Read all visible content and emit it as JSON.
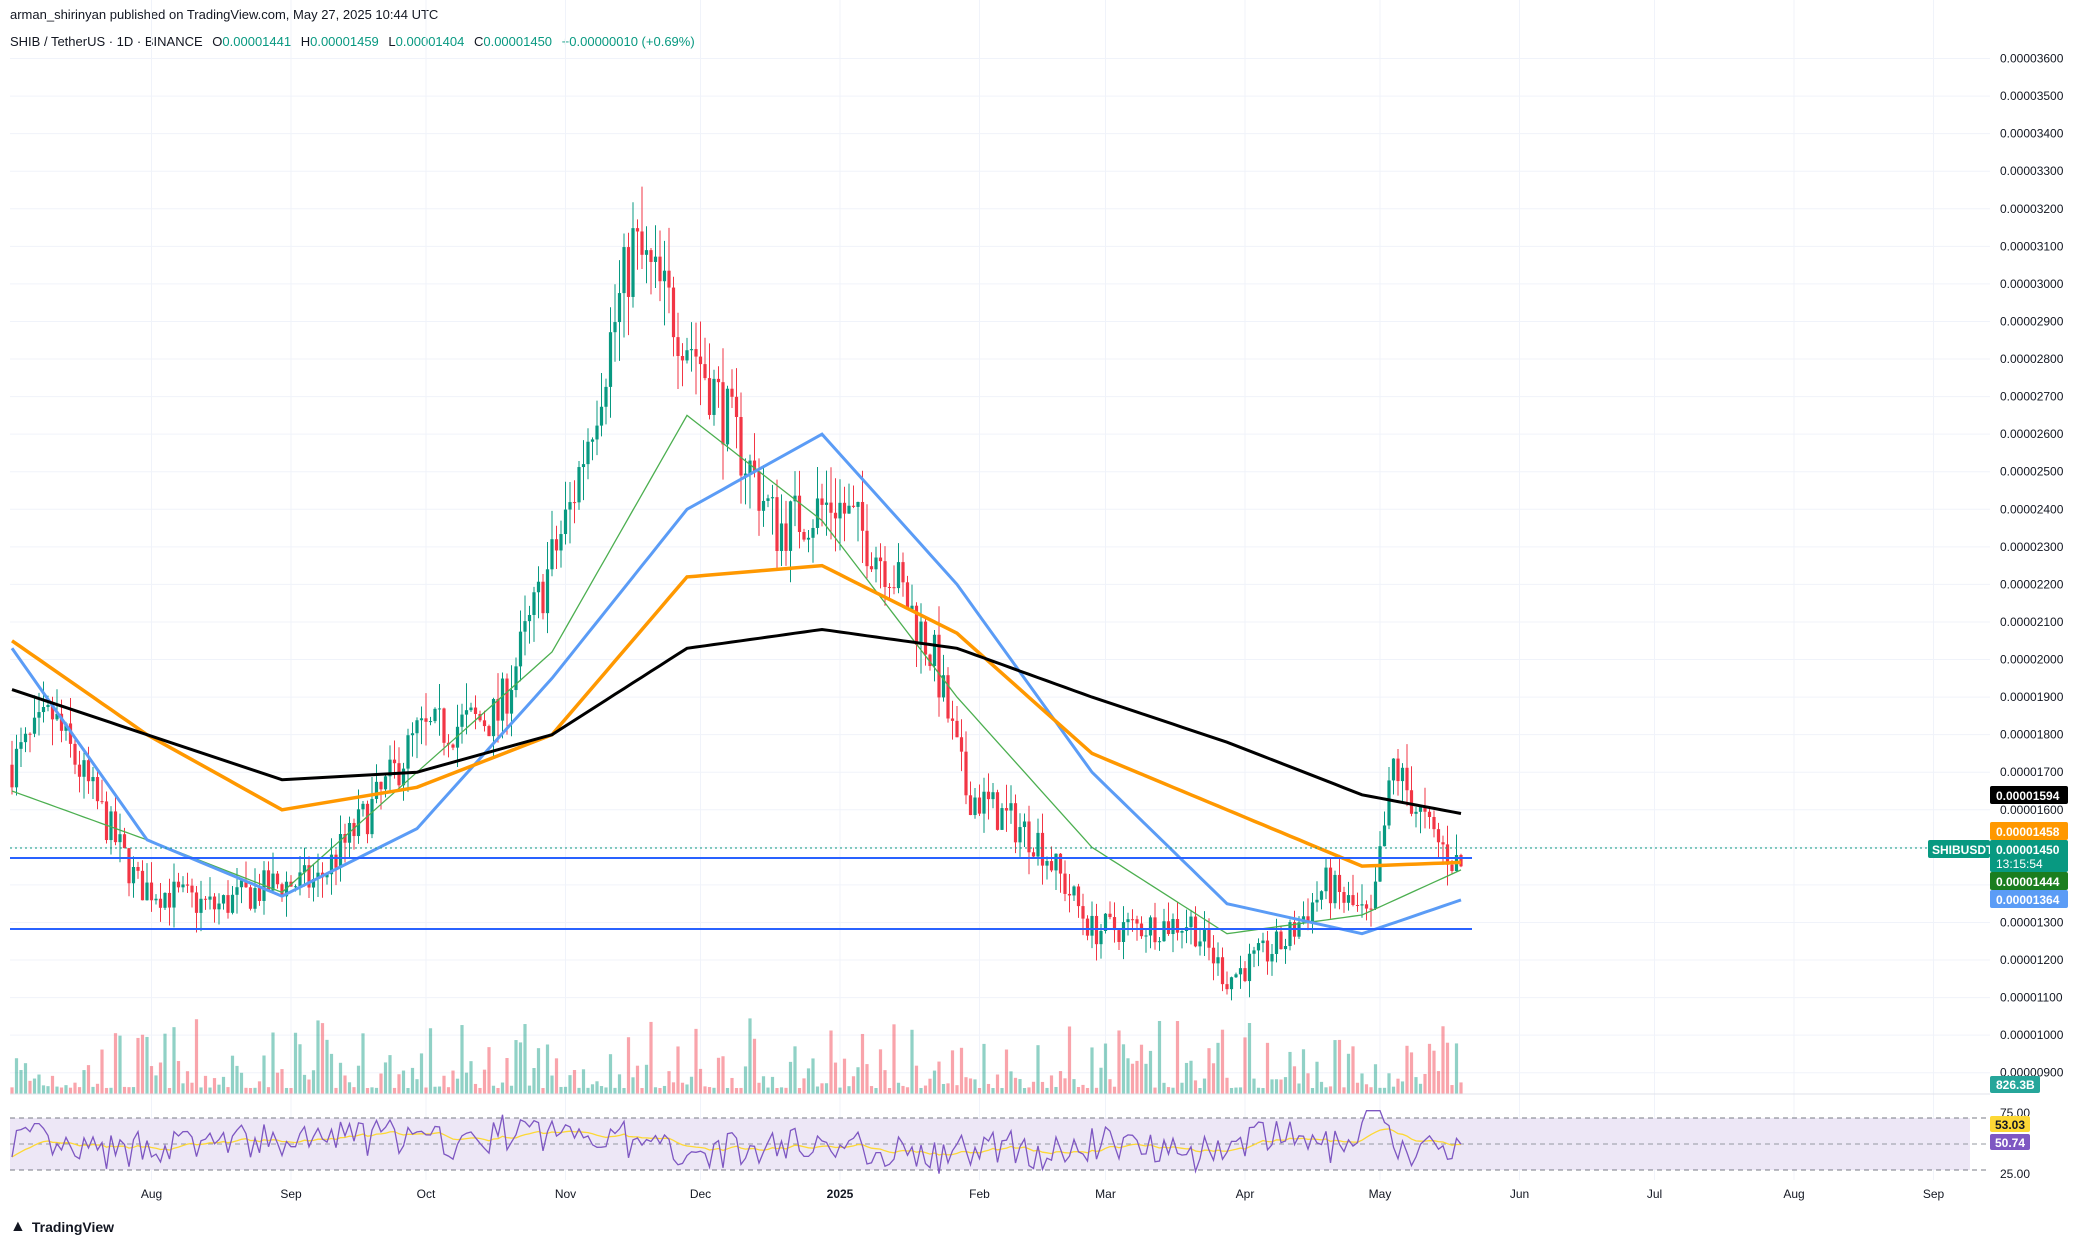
{
  "header": {
    "publisher": "arman_shirinyan published on TradingView.com, May 27, 2025 10:44 UTC",
    "symbol": "SHIB / TetherUS · 1D · BINANCE",
    "open_label": "O",
    "open": "0.00001441",
    "high_label": "H",
    "high": "0.00001459",
    "low_label": "L",
    "low": "0.00001404",
    "close_label": "C",
    "close": "0.00001450",
    "change": "+0.00000010 (+0.69%)"
  },
  "price_tags": {
    "ma200": "0.00001594",
    "ma100": "0.00001458",
    "symbol_tag": "SHIBUSDT",
    "last": "0.00001450",
    "countdown": "13:15:54",
    "ma20": "0.00001444",
    "ma50": "0.00001364",
    "volume": "826.3B",
    "rsi_ma": "53.03",
    "rsi": "50.74"
  },
  "rsi_levels": [
    "75.00",
    "25.00"
  ],
  "brand": {
    "name": "TradingView",
    "logo_icon": "tradingview-logo-icon"
  },
  "colors": {
    "up": "#089981",
    "down": "#f23645",
    "ma20": "#4caf50",
    "ma50": "#5b9cf6",
    "ma100": "#ff9800",
    "ma200": "#000000",
    "support": "#2962ff",
    "rsi_line": "#7e57c2",
    "rsi_ma": "#fdd835",
    "rsi_band": "#ede7f6"
  },
  "chart_data": {
    "type": "candlestick",
    "title": "SHIB / TetherUS · 1D · BINANCE",
    "ylim": [
      8.7e-06,
      3.66e-05
    ],
    "y_ticks": [
      "0.00000900",
      "0.00001000",
      "0.00001100",
      "0.00001200",
      "0.00001300",
      "0.00001400",
      "0.00001500",
      "0.00001600",
      "0.00001700",
      "0.00001800",
      "0.00001900",
      "0.00002000",
      "0.00002100",
      "0.00002200",
      "0.00002300",
      "0.00002400",
      "0.00002500",
      "0.00002600",
      "0.00002700",
      "0.00002800",
      "0.00002900",
      "0.00003000",
      "0.00003100",
      "0.00003200",
      "0.00003300",
      "0.00003400",
      "0.00003500",
      "0.00003600"
    ],
    "x_ticks": [
      "Aug",
      "Sep",
      "Oct",
      "Nov",
      "Dec",
      "2025",
      "Feb",
      "Mar",
      "Apr",
      "May",
      "Jun",
      "Jul",
      "Aug",
      "Sep"
    ],
    "support_levels": [
      1.446e-05,
      1.252e-05
    ],
    "price_path": [
      [
        0,
        1.72e-05
      ],
      [
        9,
        1.85e-05
      ],
      [
        28,
        1.4e-05
      ],
      [
        45,
        1.34e-05
      ],
      [
        58,
        1.4e-05
      ],
      [
        68,
        1.41e-05
      ],
      [
        82,
        1.64e-05
      ],
      [
        90,
        1.8e-05
      ],
      [
        108,
        1.85e-05
      ],
      [
        124,
        2.4e-05
      ],
      [
        138,
        3.1e-05
      ],
      [
        152,
        2.82e-05
      ],
      [
        170,
        2.35e-05
      ],
      [
        183,
        2.42e-05
      ],
      [
        195,
        2.25e-05
      ],
      [
        205,
        2e-05
      ],
      [
        212,
        1.65e-05
      ],
      [
        228,
        1.52e-05
      ],
      [
        240,
        1.28e-05
      ],
      [
        262,
        1.3e-05
      ],
      [
        270,
        1.15e-05
      ],
      [
        283,
        1.25e-05
      ],
      [
        292,
        1.4e-05
      ],
      [
        302,
        1.3e-05
      ],
      [
        307,
        1.72e-05
      ],
      [
        315,
        1.54e-05
      ],
      [
        320,
        1.47e-05
      ],
      [
        322,
        1.45e-05
      ]
    ],
    "series": [
      {
        "name": "MA20",
        "x": [
          0,
          30,
          60,
          90,
          120,
          150,
          180,
          210,
          240,
          270,
          300,
          322
        ],
        "values": [
          1.65e-05,
          1.52e-05,
          1.38e-05,
          1.7e-05,
          2.02e-05,
          2.65e-05,
          2.37e-05,
          1.9e-05,
          1.5e-05,
          1.27e-05,
          1.32e-05,
          1.44e-05
        ]
      },
      {
        "name": "MA50",
        "x": [
          0,
          30,
          60,
          90,
          120,
          150,
          180,
          210,
          240,
          270,
          300,
          322
        ],
        "values": [
          2.03e-05,
          1.52e-05,
          1.37e-05,
          1.55e-05,
          1.95e-05,
          2.4e-05,
          2.6e-05,
          2.2e-05,
          1.7e-05,
          1.35e-05,
          1.27e-05,
          1.36e-05
        ]
      },
      {
        "name": "MA100",
        "x": [
          0,
          30,
          60,
          90,
          120,
          150,
          180,
          210,
          240,
          270,
          300,
          322
        ],
        "values": [
          2.05e-05,
          1.8e-05,
          1.6e-05,
          1.66e-05,
          1.8e-05,
          2.22e-05,
          2.25e-05,
          2.07e-05,
          1.75e-05,
          1.6e-05,
          1.45e-05,
          1.46e-05
        ]
      },
      {
        "name": "MA200",
        "x": [
          0,
          30,
          60,
          90,
          120,
          150,
          180,
          210,
          240,
          270,
          300,
          322
        ],
        "values": [
          1.92e-05,
          1.8e-05,
          1.68e-05,
          1.7e-05,
          1.8e-05,
          2.03e-05,
          2.08e-05,
          2.03e-05,
          1.9e-05,
          1.78e-05,
          1.64e-05,
          1.59e-05
        ]
      }
    ],
    "volume": {
      "last": "826.3B"
    },
    "rsi": {
      "levels": [
        75,
        25
      ],
      "last": 50.74,
      "ma_last": 53.03
    }
  }
}
